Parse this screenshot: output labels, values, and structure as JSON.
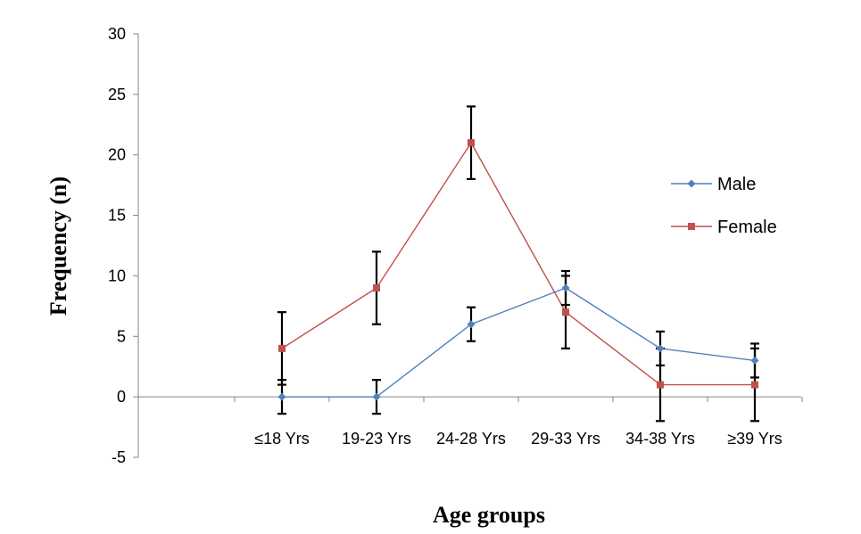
{
  "chart_data": {
    "type": "line",
    "title": "",
    "xlabel": "Age groups",
    "ylabel": "Frequency (n)",
    "categories": [
      "≤18 Yrs",
      "19-23 Yrs",
      "24-28 Yrs",
      "29-33 Yrs",
      "34-38 Yrs",
      "≥39 Yrs"
    ],
    "ylim": [
      -5,
      30
    ],
    "yticks": [
      -5,
      0,
      5,
      10,
      15,
      20,
      25,
      30
    ],
    "grid": false,
    "legend_position": "right",
    "series": [
      {
        "name": "Male",
        "color": "#4f81bd",
        "marker": "diamond",
        "values": [
          0,
          0,
          6,
          9,
          4,
          3
        ],
        "error_low": [
          1.4,
          1.4,
          1.4,
          1.4,
          1.4,
          1.4
        ],
        "error_high": [
          1.4,
          1.4,
          1.4,
          1.4,
          1.4,
          1.4
        ]
      },
      {
        "name": "Female",
        "color": "#c0504d",
        "marker": "square",
        "values": [
          4,
          9,
          21,
          7,
          1,
          1
        ],
        "error_low": [
          3,
          3,
          3,
          3,
          3,
          3
        ],
        "error_high": [
          3,
          3,
          3,
          3,
          3,
          3
        ]
      }
    ]
  }
}
